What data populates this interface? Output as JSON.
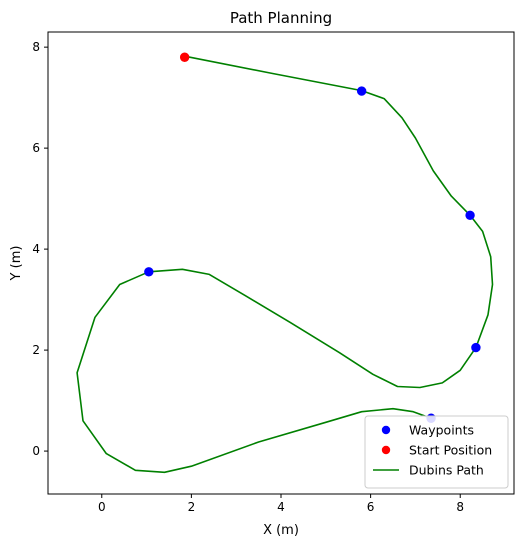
{
  "chart_data": {
    "type": "scatter",
    "title": "Path Planning",
    "xlabel": "X (m)",
    "ylabel": "Y (m)",
    "xlim": [
      -1.2,
      9.2
    ],
    "ylim": [
      -0.85,
      8.3
    ],
    "xticks": [
      0,
      2,
      4,
      6,
      8
    ],
    "yticks": [
      0,
      2,
      4,
      6,
      8
    ],
    "grid": false,
    "legend_position": "lower right",
    "series": [
      {
        "name": "Waypoints",
        "kind": "scatter",
        "color": "#0000ff",
        "points": [
          [
            5.8,
            7.13
          ],
          [
            8.22,
            4.67
          ],
          [
            8.35,
            2.05
          ],
          [
            1.05,
            3.55
          ],
          [
            7.35,
            0.65
          ]
        ]
      },
      {
        "name": "Start Position",
        "kind": "scatter",
        "color": "#ff0000",
        "points": [
          [
            1.85,
            7.8
          ]
        ]
      },
      {
        "name": "Dubins Path",
        "kind": "line",
        "color": "#008000",
        "points": [
          [
            1.85,
            7.82
          ],
          [
            3.8,
            7.48
          ],
          [
            5.8,
            7.14
          ],
          [
            6.3,
            6.98
          ],
          [
            6.7,
            6.6
          ],
          [
            7.0,
            6.2
          ],
          [
            7.4,
            5.55
          ],
          [
            7.8,
            5.05
          ],
          [
            8.22,
            4.67
          ],
          [
            8.5,
            4.35
          ],
          [
            8.68,
            3.85
          ],
          [
            8.72,
            3.3
          ],
          [
            8.62,
            2.7
          ],
          [
            8.35,
            2.05
          ],
          [
            8.0,
            1.6
          ],
          [
            7.6,
            1.35
          ],
          [
            7.1,
            1.26
          ],
          [
            6.6,
            1.28
          ],
          [
            6.05,
            1.52
          ],
          [
            5.3,
            1.95
          ],
          [
            4.2,
            2.55
          ],
          [
            3.2,
            3.08
          ],
          [
            2.4,
            3.5
          ],
          [
            1.8,
            3.6
          ],
          [
            1.05,
            3.55
          ],
          [
            0.4,
            3.3
          ],
          [
            -0.15,
            2.65
          ],
          [
            -0.55,
            1.55
          ],
          [
            -0.42,
            0.6
          ],
          [
            0.1,
            -0.05
          ],
          [
            0.75,
            -0.38
          ],
          [
            1.4,
            -0.42
          ],
          [
            2.0,
            -0.3
          ],
          [
            3.5,
            0.18
          ],
          [
            5.0,
            0.57
          ],
          [
            5.8,
            0.78
          ],
          [
            6.5,
            0.84
          ],
          [
            6.95,
            0.78
          ],
          [
            7.35,
            0.65
          ]
        ]
      }
    ]
  }
}
